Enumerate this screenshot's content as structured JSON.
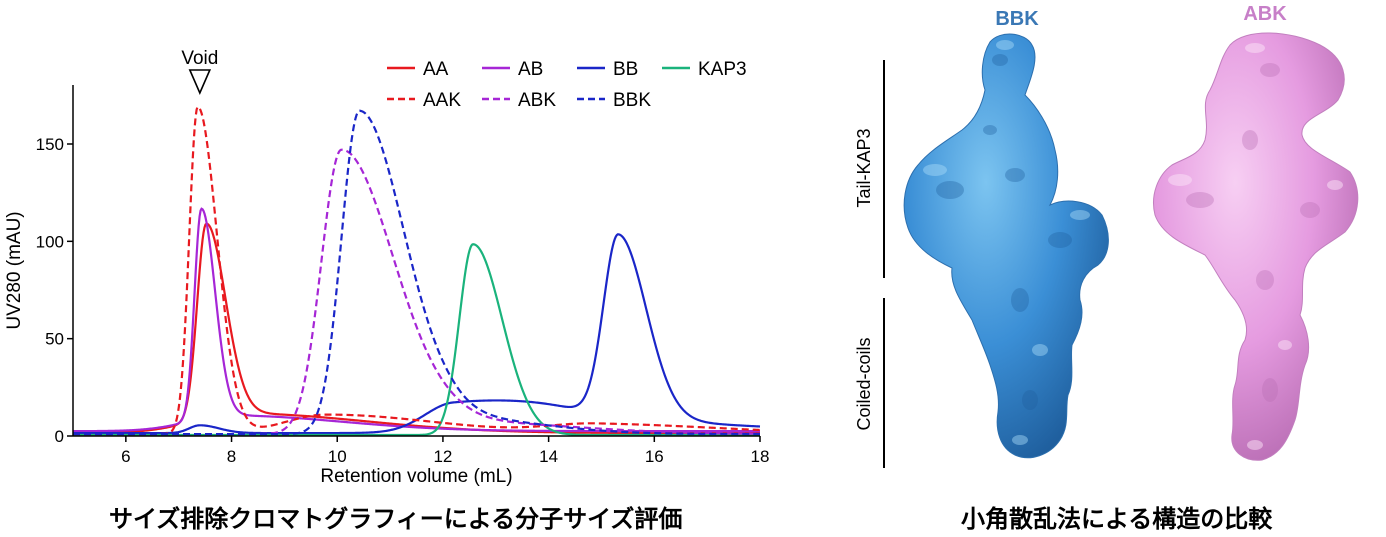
{
  "chart_data": {
    "type": "line",
    "xlabel": "Retention volume (mL)",
    "ylabel": "UV280 (mAU)",
    "xlim": [
      5,
      18
    ],
    "ylim": [
      0,
      180
    ],
    "xticks": [
      6,
      8,
      10,
      12,
      14,
      16,
      18
    ],
    "yticks": [
      0,
      50,
      100,
      150
    ],
    "annotation": {
      "label": "Void",
      "x": 7.4
    },
    "legend_position": "top-right",
    "series": [
      {
        "name": "AA",
        "color": "#e8191f",
        "dash": false,
        "peaks": [
          [
            7.52,
            100,
            0.17,
            0.7
          ],
          [
            8.2,
            10,
            0.9,
            1.0
          ]
        ],
        "baseline": 1.5
      },
      {
        "name": "AB",
        "color": "#a626d6",
        "dash": false,
        "peaks": [
          [
            7.43,
            108,
            0.13,
            0.6
          ],
          [
            8.0,
            8,
            0.8,
            1.0
          ]
        ],
        "baseline": 2.5
      },
      {
        "name": "BB",
        "color": "#1a26c8",
        "dash": false,
        "peaks": [
          [
            15.32,
            93,
            0.28,
            0.55
          ],
          [
            12.2,
            14,
            0.55,
            1.3
          ],
          [
            7.4,
            4,
            0.2,
            0.5
          ],
          [
            14.2,
            7,
            1.2,
            1.0
          ]
        ],
        "baseline": 1.5
      },
      {
        "name": "KAP3",
        "color": "#1ab37c",
        "dash": false,
        "peaks": [
          [
            12.57,
            98,
            0.26,
            0.7
          ]
        ],
        "baseline": 0.5
      },
      {
        "name": "AAK",
        "color": "#e8191f",
        "dash": true,
        "peaks": [
          [
            7.36,
            168,
            0.16,
            0.8
          ],
          [
            9.8,
            10,
            0.8,
            1.0
          ],
          [
            14.9,
            5,
            0.9,
            1.0
          ]
        ],
        "baseline": 1.0
      },
      {
        "name": "ABK",
        "color": "#a626d6",
        "dash": true,
        "peaks": [
          [
            10.08,
            146,
            0.38,
            1.0
          ],
          [
            12.4,
            6,
            0.8,
            1.0
          ]
        ],
        "baseline": 1.0
      },
      {
        "name": "BBK",
        "color": "#1a26c8",
        "dash": true,
        "peaks": [
          [
            10.42,
            166,
            0.34,
            0.95
          ],
          [
            12.3,
            8,
            0.6,
            1.0
          ]
        ],
        "baseline": 1.0
      }
    ]
  },
  "legend": [
    {
      "label": "AA",
      "color": "#e8191f",
      "dash": false
    },
    {
      "label": "AB",
      "color": "#a626d6",
      "dash": false
    },
    {
      "label": "BB",
      "color": "#1a26c8",
      "dash": false
    },
    {
      "label": "KAP3",
      "color": "#1ab37c",
      "dash": false
    },
    {
      "label": "AAK",
      "color": "#e8191f",
      "dash": true
    },
    {
      "label": "ABK",
      "color": "#a626d6",
      "dash": true
    },
    {
      "label": "BBK",
      "color": "#1a26c8",
      "dash": true
    }
  ],
  "captions": {
    "left": "サイズ排除クロマトグラフィーによる分子サイズ評価",
    "right": "小角散乱法による構造の比較"
  },
  "structures": {
    "bbk_label": "BBK",
    "abk_label": "ABK",
    "bbk_color": "#3b8fd6",
    "abk_color": "#e59be0",
    "label_bbk_color": "#3a78b5",
    "label_abk_color": "#c77fc8",
    "side_labels": {
      "top": "Tail-KAP3",
      "bottom": "Coiled-coils"
    }
  }
}
